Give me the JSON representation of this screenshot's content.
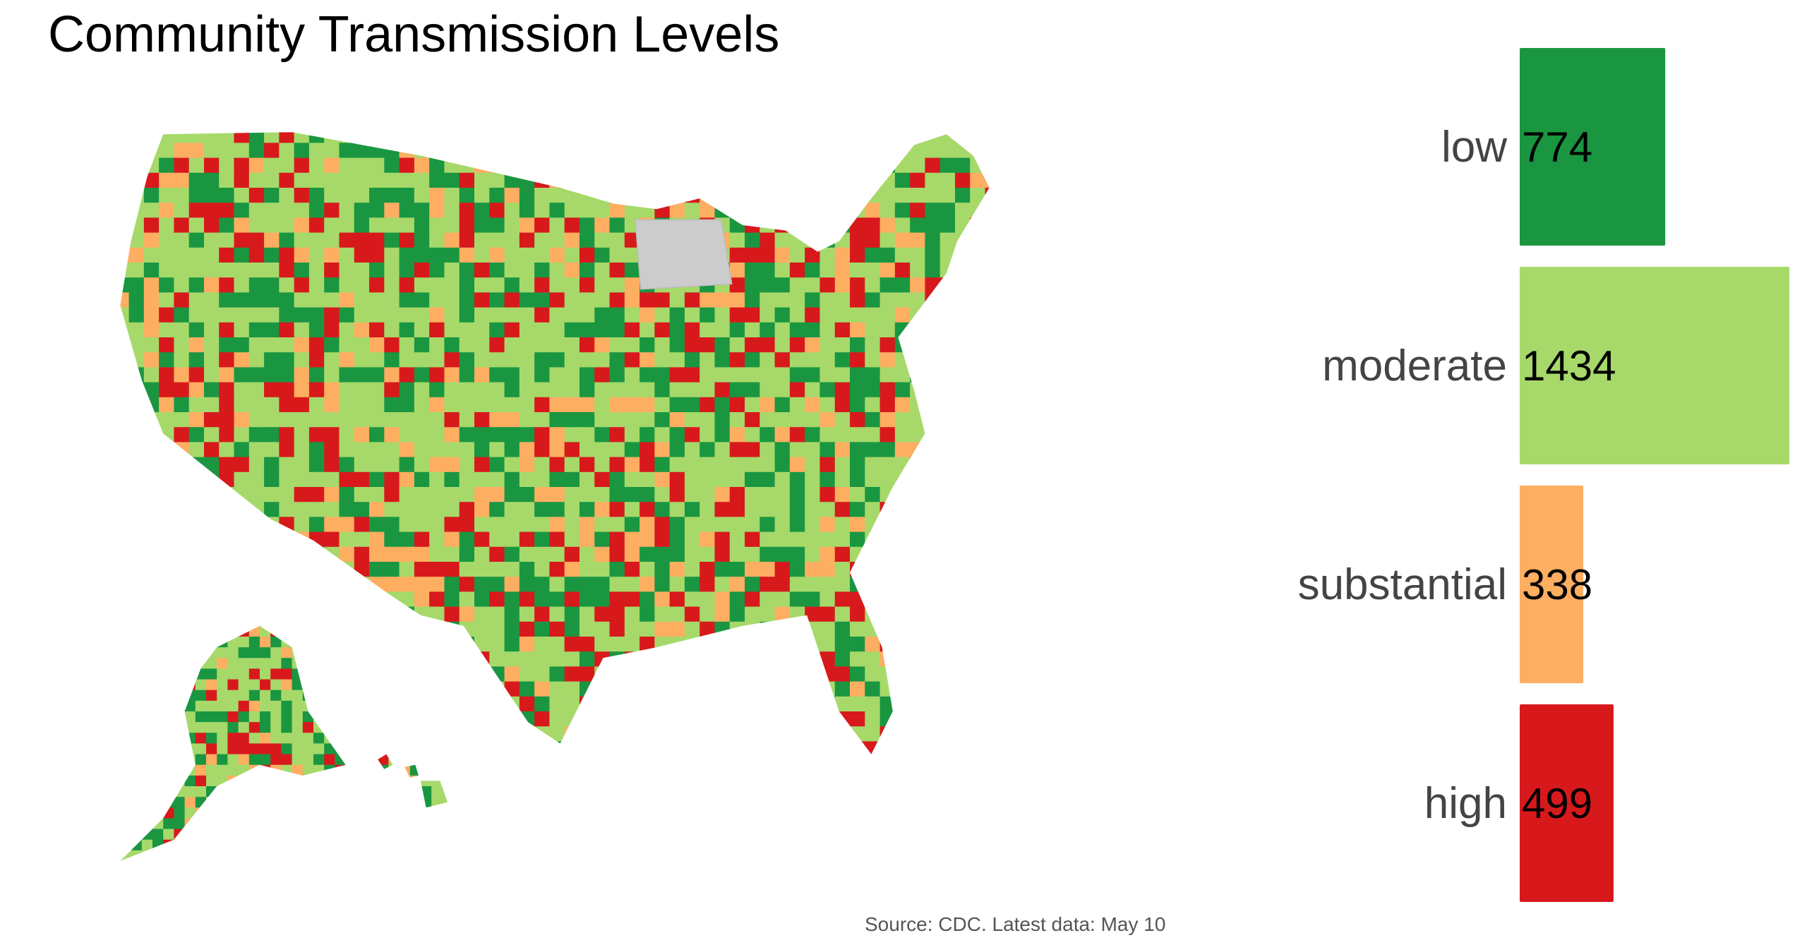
{
  "title": "Community Transmission Levels",
  "caption": "Source: CDC. Latest data: May 10",
  "colors": {
    "low": "#1a9641",
    "moderate": "#a6d96a",
    "substantial": "#fdae61",
    "high": "#d7191c",
    "no_data": "#cccccc"
  },
  "chart_data": {
    "type": "bar",
    "orientation": "horizontal",
    "categories": [
      "low",
      "moderate",
      "substantial",
      "high"
    ],
    "values": [
      774,
      1434,
      338,
      499
    ],
    "colors": [
      "#1a9641",
      "#a6d96a",
      "#fdae61",
      "#d7191c"
    ]
  }
}
